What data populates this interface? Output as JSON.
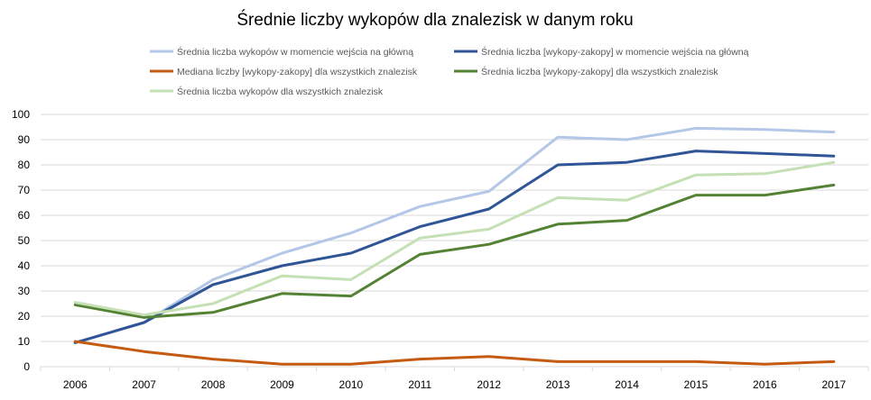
{
  "chart_data": {
    "type": "line",
    "title": "Średnie liczby wykopów dla znalezisk w danym roku",
    "xlabel": "",
    "ylabel": "",
    "x": [
      "2006",
      "2007",
      "2008",
      "2009",
      "2010",
      "2011",
      "2012",
      "2013",
      "2014",
      "2015",
      "2016",
      "2017"
    ],
    "ylim": [
      0,
      100
    ],
    "yticks": [
      "0",
      "10",
      "20",
      "30",
      "40",
      "50",
      "60",
      "70",
      "80",
      "90",
      "100"
    ],
    "grid": true,
    "legend_position": "top",
    "series": [
      {
        "name": "Średnia liczba wykopów w momencie wejścia na główną",
        "color": "#b4c7e7",
        "values": [
          9.5,
          17.5,
          34.5,
          45,
          53,
          63.5,
          69.5,
          91,
          90,
          94.5,
          94,
          93
        ]
      },
      {
        "name": "Średnia liczba [wykopy-zakopy] w momencie wejścia na główną",
        "color": "#2f5597",
        "values": [
          9.5,
          17.5,
          32.5,
          40,
          45,
          55.5,
          62.5,
          80,
          81,
          85.5,
          84.5,
          83.5
        ]
      },
      {
        "name": "Mediana liczby [wykopy-zakopy] dla wszystkich znalezisk",
        "color": "#c55a11",
        "values": [
          10,
          6,
          3,
          1,
          1,
          3,
          4,
          2,
          2,
          2,
          1,
          2
        ]
      },
      {
        "name": "Średnia liczba [wykopy-zakopy] dla wszystkich znalezisk",
        "color": "#548235",
        "values": [
          24.5,
          19.5,
          21.5,
          29,
          28,
          44.5,
          48.5,
          56.5,
          58,
          68,
          68,
          72
        ]
      },
      {
        "name": "Średnia liczba wykopów dla wszystkich znalezisk",
        "color": "#c5e0b4",
        "values": [
          25.5,
          20.5,
          25,
          36,
          34.5,
          51,
          54.5,
          67,
          66,
          76,
          76.5,
          81
        ]
      }
    ]
  }
}
